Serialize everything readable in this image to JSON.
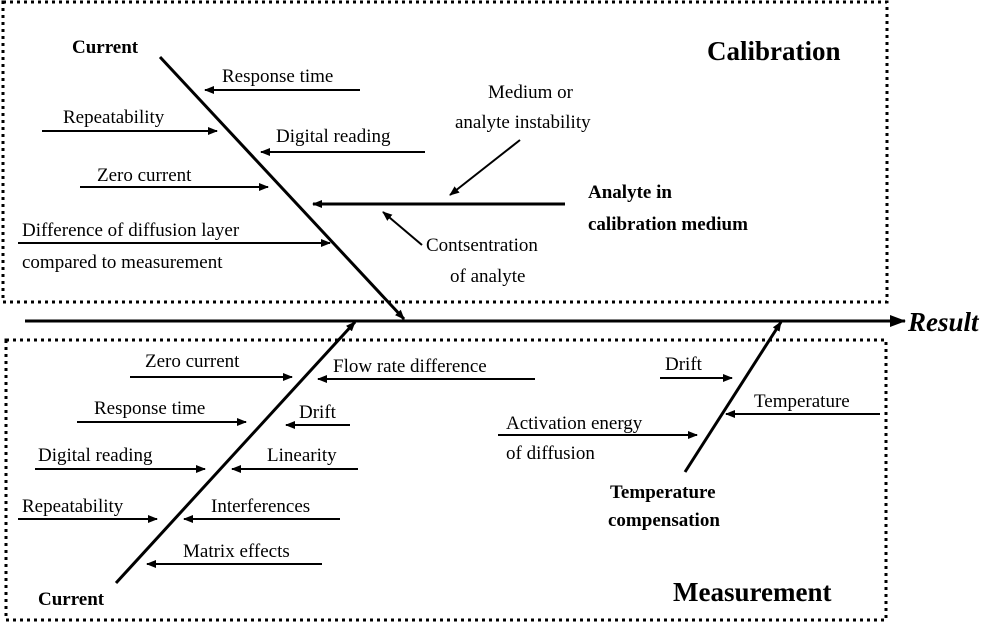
{
  "result_label": "Result",
  "calibration": {
    "title": "Calibration",
    "current_label": "Current",
    "causes": {
      "response_time": "Response time",
      "repeatability": "Repeatability",
      "digital_reading": "Digital reading",
      "zero_current": "Zero current",
      "diffusion_line1": "Difference of diffusion layer",
      "diffusion_line2": "compared to measurement",
      "medium_line1": "Medium or",
      "medium_line2": "analyte instability",
      "contsentration_line1": "Contsentration",
      "contsentration_line2": "of analyte",
      "analyte_line1": "Analyte in",
      "analyte_line2": "calibration medium"
    }
  },
  "measurement": {
    "title": "Measurement",
    "current_label": "Current",
    "causes": {
      "zero_current": "Zero current",
      "flow_rate": "Flow rate difference",
      "response_time": "Response time",
      "drift": "Drift",
      "digital_reading": "Digital reading",
      "linearity": "Linearity",
      "repeatability": "Repeatability",
      "interferences": "Interferences",
      "matrix_effects": "Matrix effects"
    },
    "temperature": {
      "drift": "Drift",
      "temperature": "Temperature",
      "activation_line1": "Activation energy",
      "activation_line2": "of diffusion",
      "comp_line1": "Temperature",
      "comp_line2": "compensation"
    }
  }
}
